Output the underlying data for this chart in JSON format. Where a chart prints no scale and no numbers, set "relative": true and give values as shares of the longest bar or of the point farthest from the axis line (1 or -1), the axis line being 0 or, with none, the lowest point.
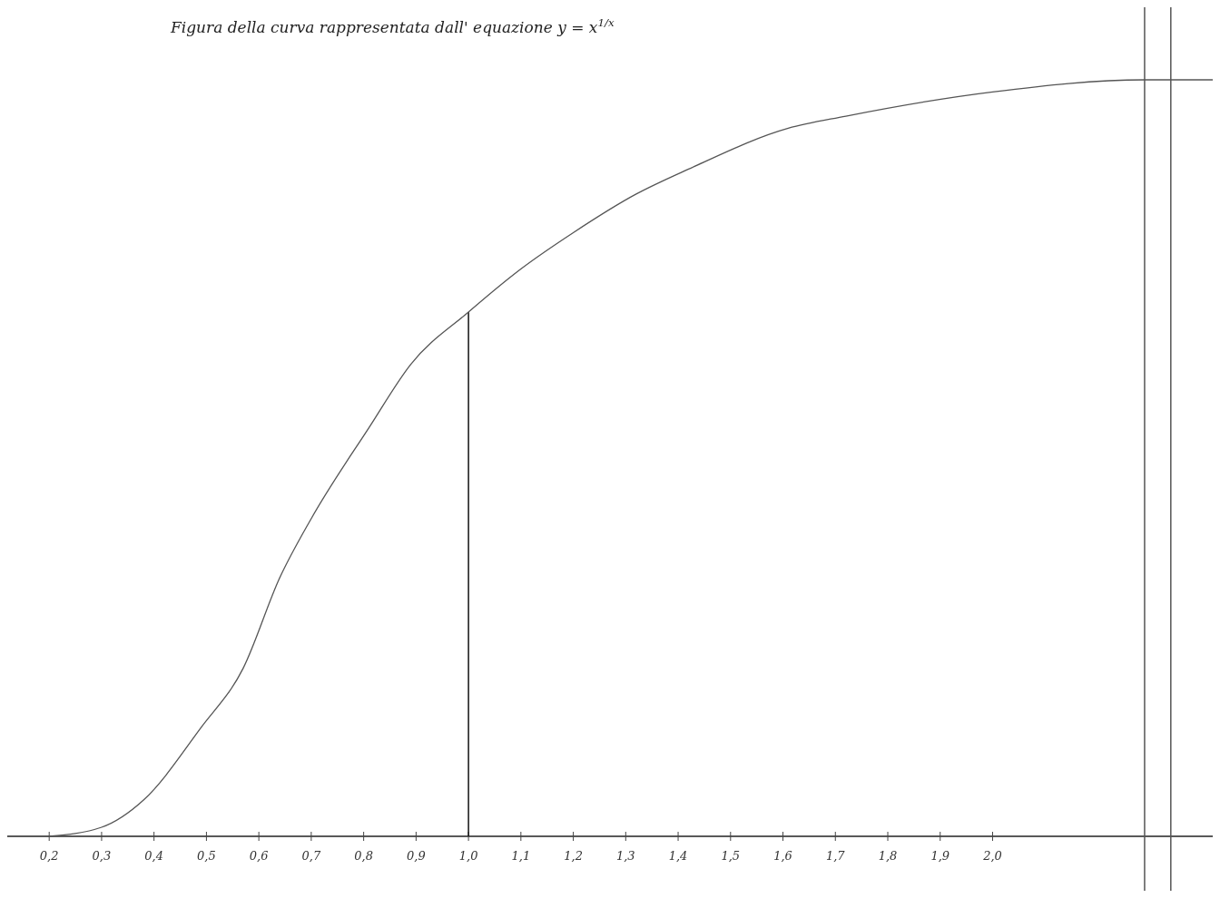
{
  "chart_data": {
    "type": "line",
    "title": "Figura della curva rappresentata dall' equazione  y = x$^{1/x}$",
    "relative": true,
    "x": [
      0.2,
      0.3,
      0.38,
      0.49,
      0.57,
      0.64,
      0.7,
      0.81,
      0.89,
      1.0,
      1.1,
      1.2,
      1.32,
      1.42,
      1.61,
      1.72,
      2.0,
      2.29,
      2.42
    ],
    "series": [
      {
        "color": "#555555",
        "values": [
          0,
          0.012,
          0.048,
          0.144,
          0.222,
          0.342,
          0.42,
          0.54,
          0.624,
          0.693,
          0.75,
          0.798,
          0.849,
          0.882,
          0.936,
          0.952,
          0.984,
          1,
          1
        ]
      }
    ],
    "xlim": [
      0.12,
      2.42
    ],
    "xticks": [
      {
        "value": 0.2,
        "label": "0,2"
      },
      {
        "value": 0.3,
        "label": "0,3"
      },
      {
        "value": 0.4,
        "label": "0,4"
      },
      {
        "value": 0.5,
        "label": "0,5"
      },
      {
        "value": 0.6,
        "label": "0,6"
      },
      {
        "value": 0.7,
        "label": "0,7"
      },
      {
        "value": 0.8,
        "label": "0,8"
      },
      {
        "value": 0.9,
        "label": "0,9"
      },
      {
        "value": 1.0,
        "label": "1,0"
      },
      {
        "value": 1.1,
        "label": "1,1"
      },
      {
        "value": 1.2,
        "label": "1,2"
      },
      {
        "value": 1.3,
        "label": "1,3"
      },
      {
        "value": 1.4,
        "label": "1,4"
      },
      {
        "value": 1.5,
        "label": "1,5"
      },
      {
        "value": 1.6,
        "label": "1,6"
      },
      {
        "value": 1.7,
        "label": "1,7"
      },
      {
        "value": 1.8,
        "label": "1,8"
      },
      {
        "value": 1.9,
        "label": "1,9"
      },
      {
        "value": 2.0,
        "label": "2,0"
      }
    ],
    "ref_lines": [
      {
        "axis": "x",
        "value": 1.0,
        "color": "#111111"
      },
      {
        "axis": "x",
        "value": 2.29,
        "color": "#555555"
      },
      {
        "axis": "x",
        "value": 2.34,
        "color": "#555555"
      }
    ],
    "marker": "none",
    "line_style": "solid"
  }
}
